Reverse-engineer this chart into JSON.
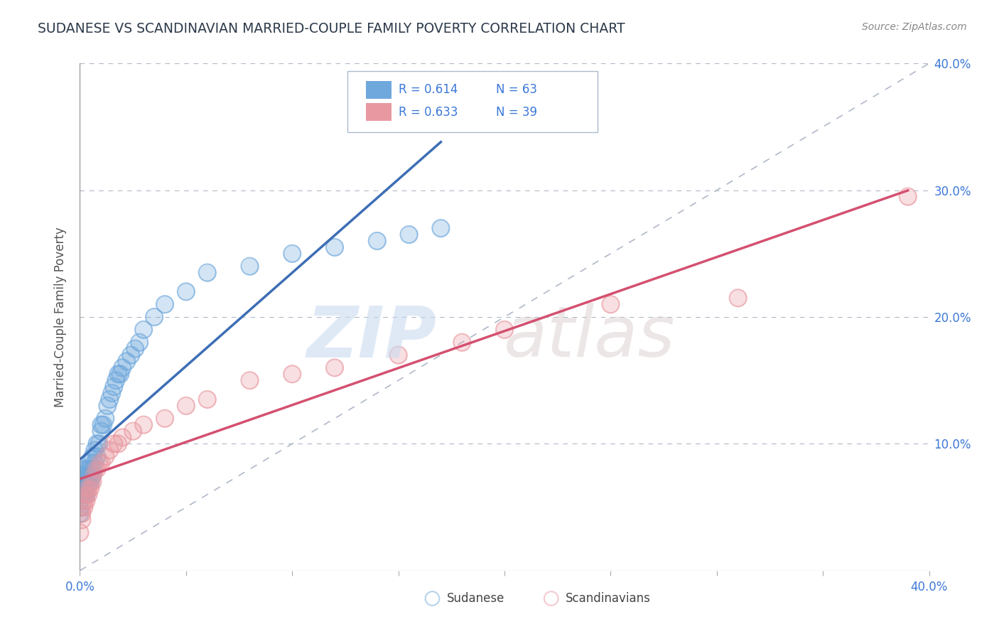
{
  "title": "SUDANESE VS SCANDINAVIAN MARRIED-COUPLE FAMILY POVERTY CORRELATION CHART",
  "source": "Source: ZipAtlas.com",
  "ylabel": "Married-Couple Family Poverty",
  "xlim": [
    0.0,
    0.4
  ],
  "ylim": [
    0.0,
    0.4
  ],
  "r_sudanese": 0.614,
  "n_sudanese": 63,
  "r_scandinavians": 0.633,
  "n_scandinavians": 39,
  "sudanese_color": "#6fa8dc",
  "scandinavians_color": "#e898a0",
  "sudanese_line_color": "#3d6eb5",
  "scandinavians_line_color": "#d45070",
  "watermark_zip": "ZIP",
  "watermark_atlas": "atlas",
  "background_color": "#ffffff",
  "title_color": "#2d3a4a",
  "legend_color": "#3c78d8",
  "tick_label_color": "#3c78d8",
  "ylabel_color": "#555555",
  "sudanese_x": [
    0.0,
    0.0,
    0.0,
    0.001,
    0.001,
    0.001,
    0.001,
    0.001,
    0.001,
    0.001,
    0.002,
    0.002,
    0.002,
    0.002,
    0.002,
    0.003,
    0.003,
    0.003,
    0.003,
    0.003,
    0.004,
    0.004,
    0.004,
    0.004,
    0.005,
    0.005,
    0.005,
    0.005,
    0.006,
    0.006,
    0.006,
    0.007,
    0.007,
    0.008,
    0.008,
    0.009,
    0.01,
    0.01,
    0.011,
    0.012,
    0.013,
    0.014,
    0.015,
    0.016,
    0.017,
    0.018,
    0.019,
    0.02,
    0.022,
    0.024,
    0.026,
    0.028,
    0.03,
    0.035,
    0.04,
    0.05,
    0.06,
    0.08,
    0.1,
    0.12,
    0.14,
    0.155,
    0.17
  ],
  "sudanese_y": [
    0.045,
    0.05,
    0.055,
    0.06,
    0.06,
    0.065,
    0.065,
    0.07,
    0.07,
    0.075,
    0.06,
    0.065,
    0.07,
    0.075,
    0.08,
    0.06,
    0.065,
    0.07,
    0.075,
    0.08,
    0.07,
    0.075,
    0.075,
    0.08,
    0.07,
    0.075,
    0.08,
    0.085,
    0.075,
    0.08,
    0.09,
    0.085,
    0.095,
    0.09,
    0.1,
    0.1,
    0.11,
    0.115,
    0.115,
    0.12,
    0.13,
    0.135,
    0.14,
    0.145,
    0.15,
    0.155,
    0.155,
    0.16,
    0.165,
    0.17,
    0.175,
    0.18,
    0.19,
    0.2,
    0.21,
    0.22,
    0.235,
    0.24,
    0.25,
    0.255,
    0.26,
    0.265,
    0.27
  ],
  "scandinavians_x": [
    0.0,
    0.001,
    0.001,
    0.001,
    0.002,
    0.002,
    0.002,
    0.003,
    0.003,
    0.003,
    0.004,
    0.004,
    0.005,
    0.005,
    0.006,
    0.006,
    0.007,
    0.008,
    0.009,
    0.01,
    0.012,
    0.014,
    0.016,
    0.018,
    0.02,
    0.025,
    0.03,
    0.04,
    0.05,
    0.06,
    0.08,
    0.1,
    0.12,
    0.15,
    0.18,
    0.2,
    0.25,
    0.31,
    0.39
  ],
  "scandinavians_y": [
    0.03,
    0.04,
    0.045,
    0.05,
    0.05,
    0.055,
    0.06,
    0.055,
    0.06,
    0.065,
    0.06,
    0.065,
    0.065,
    0.07,
    0.07,
    0.075,
    0.08,
    0.08,
    0.085,
    0.085,
    0.09,
    0.095,
    0.1,
    0.1,
    0.105,
    0.11,
    0.115,
    0.12,
    0.13,
    0.135,
    0.15,
    0.155,
    0.16,
    0.17,
    0.18,
    0.19,
    0.21,
    0.215,
    0.295
  ],
  "diag_line_x": [
    0.0,
    0.4
  ],
  "diag_line_y": [
    0.0,
    0.4
  ]
}
